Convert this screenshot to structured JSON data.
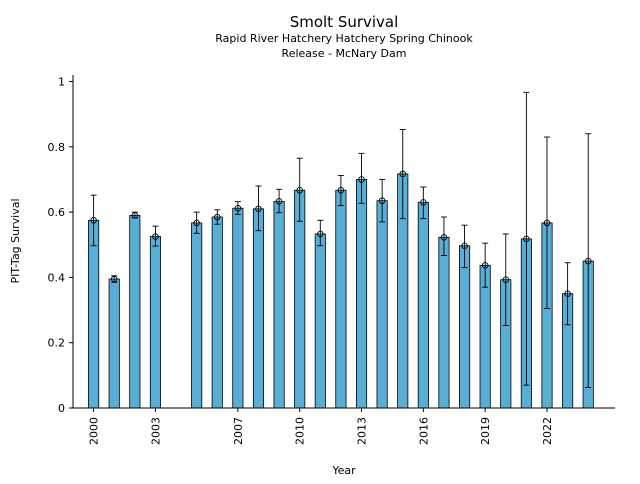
{
  "chart_data": {
    "type": "bar",
    "title": "Smolt Survival",
    "subtitle_lines": [
      "Rapid River Hatchery Hatchery Spring Chinook",
      "Release - McNary Dam"
    ],
    "xlabel": "Year",
    "ylabel": "PIT-Tag Survival",
    "bar_color": "#5aaed6",
    "ylim": [
      0,
      1.02
    ],
    "xlim": [
      1999,
      2025.3
    ],
    "yticks": [
      0,
      0.2,
      0.4,
      0.6,
      0.8,
      1
    ],
    "ytick_labels": [
      "0",
      "0.2",
      "0.4",
      "0.6",
      "0.8",
      "1"
    ],
    "xticks": [
      2000,
      2003,
      2007,
      2010,
      2013,
      2016,
      2019,
      2022
    ],
    "xtick_labels": [
      "2000",
      "2003",
      "2007",
      "2010",
      "2013",
      "2016",
      "2019",
      "2022"
    ],
    "grid": false,
    "legend": "none",
    "years": [
      2000,
      2001,
      2002,
      2003,
      2005,
      2006,
      2007,
      2008,
      2009,
      2010,
      2011,
      2012,
      2013,
      2014,
      2015,
      2016,
      2017,
      2018,
      2019,
      2020,
      2021,
      2022,
      2023,
      2024
    ],
    "values": [
      0.575,
      0.395,
      0.59,
      0.525,
      0.567,
      0.585,
      0.612,
      0.61,
      0.633,
      0.667,
      0.533,
      0.667,
      0.7,
      0.635,
      0.717,
      0.63,
      0.523,
      0.497,
      0.437,
      0.393,
      0.518,
      0.567,
      0.35,
      0.45
    ],
    "err_low": [
      0.497,
      0.385,
      0.582,
      0.496,
      0.535,
      0.563,
      0.593,
      0.543,
      0.598,
      0.572,
      0.497,
      0.62,
      0.627,
      0.57,
      0.58,
      0.58,
      0.467,
      0.43,
      0.37,
      0.253,
      0.07,
      0.305,
      0.255,
      0.063
    ],
    "err_high": [
      0.652,
      0.405,
      0.6,
      0.557,
      0.6,
      0.607,
      0.632,
      0.68,
      0.67,
      0.765,
      0.575,
      0.712,
      0.78,
      0.7,
      0.853,
      0.677,
      0.585,
      0.56,
      0.505,
      0.533,
      0.967,
      0.83,
      0.445,
      0.84
    ]
  }
}
